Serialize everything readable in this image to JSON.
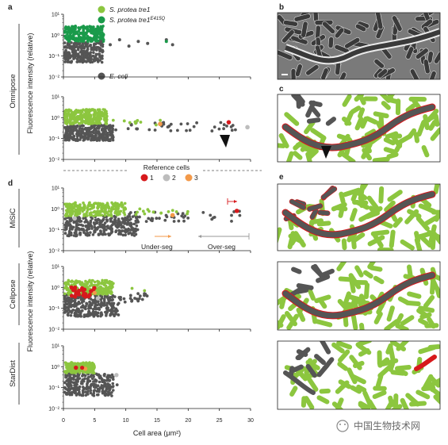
{
  "panel_letters": {
    "a": "a",
    "b": "b",
    "c": "c",
    "d": "d",
    "e": "e"
  },
  "legend": {
    "species_1": "S. protea tre1",
    "species_2": "S. protea tre1",
    "species_2_sup": "E415Q",
    "ecoli": "E. coli",
    "colors": {
      "species_1": "#8cc63f",
      "species_2": "#1a9a4a",
      "ecoli": "#555555"
    }
  },
  "reference_cells": {
    "title": "Reference cells",
    "items": [
      {
        "label": "1",
        "color": "#d7191c"
      },
      {
        "label": "2",
        "color": "#bdbdbd"
      },
      {
        "label": "3",
        "color": "#f39a4a"
      }
    ]
  },
  "method_labels": {
    "omnipose": "Omnipose",
    "misic": "MiSiC",
    "cellpose": "Cellpose",
    "stardist": "StarDist"
  },
  "axes": {
    "ylabel": "Fluorescence intensity (relative)",
    "xlabel": "Cell area (μm²)",
    "xticks": [
      "0",
      "5",
      "10",
      "15",
      "20",
      "25",
      "30"
    ]
  },
  "annotations": {
    "under_seg": "Under-seg",
    "over_seg": "Over-seg"
  },
  "watermark": "中国生物技术网",
  "chart_data": [
    {
      "type": "scatter",
      "id": "omnipose-top",
      "xlim": [
        0,
        30
      ],
      "ylim": [
        0.01,
        10
      ],
      "yscale": "log",
      "yticks": [
        "10¹",
        "10⁰",
        "10⁻¹",
        "10⁻²"
      ],
      "series_names": [
        "S. protea tre1E415Q",
        "E. coli"
      ],
      "note_points": {
        "ecoli_outliers": [
          [
            6,
            0.5
          ],
          [
            7.5,
            0.35
          ],
          [
            9,
            0.6
          ],
          [
            10.5,
            0.3
          ],
          [
            12,
            0.5
          ],
          [
            13.5,
            0.4
          ],
          [
            16.5,
            0.6
          ],
          [
            17.5,
            0.35
          ]
        ],
        "green_outlier": [
          16.5,
          0.5
        ]
      }
    },
    {
      "type": "scatter",
      "id": "omnipose-bottom",
      "xlim": [
        0,
        30
      ],
      "ylim": [
        0.01,
        10
      ],
      "yscale": "log",
      "yticks": [
        "10¹",
        "10⁰",
        "10⁻¹",
        "10⁻²"
      ],
      "reference_points": [
        {
          "ref": "1",
          "x": 26.5,
          "y": 0.6
        },
        {
          "ref": "2",
          "x": 29.5,
          "y": 0.35
        },
        {
          "ref": "3",
          "x": 15.5,
          "y": 0.5
        }
      ]
    },
    {
      "type": "scatter",
      "id": "misic",
      "xlim": [
        0,
        30
      ],
      "ylim": [
        0.01,
        10
      ],
      "yscale": "log",
      "yticks": [
        "10¹",
        "10⁰",
        "10⁻¹",
        "10⁻²"
      ],
      "reference_points": [
        {
          "ref": "1",
          "x": 27.8,
          "y": 0.8
        },
        {
          "ref": "2",
          "x": 1.8,
          "y": 0.35
        },
        {
          "ref": "3",
          "x": 17.5,
          "y": 0.5
        }
      ]
    },
    {
      "type": "scatter",
      "id": "cellpose",
      "xlim": [
        0,
        30
      ],
      "ylim": [
        0.01,
        10
      ],
      "yscale": "log",
      "yticks": [
        "10¹",
        "10⁰",
        "10⁻¹",
        "10⁻²"
      ],
      "reference_points": [
        {
          "ref": "1",
          "x": 2.5,
          "y": 0.7
        },
        {
          "ref": "2",
          "x": 5.5,
          "y": 0.3
        },
        {
          "ref": "3",
          "x": 5.0,
          "y": 0.55
        }
      ]
    },
    {
      "type": "scatter",
      "id": "stardist",
      "xlim": [
        0,
        30
      ],
      "ylim": [
        0.01,
        10
      ],
      "yscale": "log",
      "yticks": [
        "10¹",
        "10⁰",
        "10⁻¹",
        "10⁻²"
      ],
      "reference_points": [
        {
          "ref": "1",
          "x": 2.0,
          "y": 0.9
        },
        {
          "ref": "2",
          "x": 8.5,
          "y": 0.4
        },
        {
          "ref": "3",
          "x": 3.5,
          "y": 0.8
        }
      ]
    }
  ]
}
